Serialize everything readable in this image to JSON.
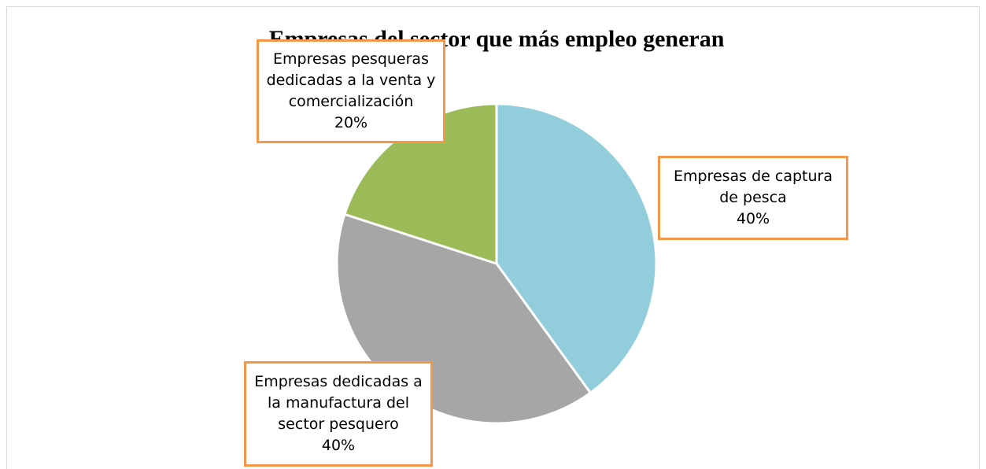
{
  "chart_data": {
    "type": "pie",
    "title": "Empresas del sector que más empleo generan",
    "categories": [
      "Empresas de captura de pesca",
      "Empresas dedicadas a la manufactura del sector pesquero",
      "Empresas pesqueras dedicadas a la venta y comercialización"
    ],
    "values": [
      40,
      40,
      20
    ],
    "value_labels": [
      "40%",
      "40%",
      "20%"
    ],
    "colors": [
      "#92cddc",
      "#a6a6a6",
      "#9bbb59"
    ]
  }
}
